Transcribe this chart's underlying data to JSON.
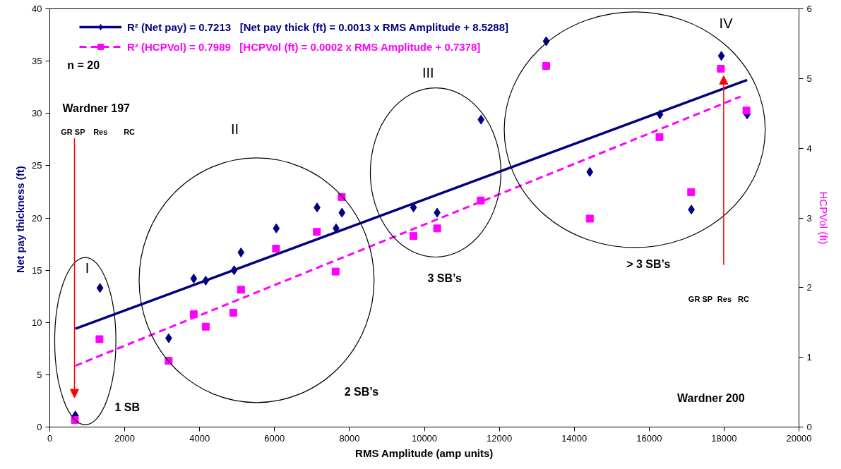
{
  "chart_data": {
    "type": "scatter",
    "xlabel": "RMS Amplitude (amp units)",
    "ylabel": "Net  pay thickness (ft)",
    "y2label": "HCPVol (ft)",
    "xlim": [
      0,
      20000
    ],
    "xticks": [
      0,
      2000,
      4000,
      6000,
      8000,
      10000,
      12000,
      14000,
      16000,
      18000,
      20000
    ],
    "ylim": [
      0,
      40
    ],
    "yticks": [
      0,
      5,
      10,
      15,
      20,
      25,
      30,
      35,
      40
    ],
    "y2lim": [
      0,
      6
    ],
    "y2ticks": [
      0,
      1,
      2,
      3,
      4,
      5,
      6
    ],
    "grid": false,
    "legend": "top left",
    "series": [
      {
        "name": "R² (Net pay) = 0.7213   [Net pay thick (ft) = 0.0013 x RMS Amplitude + 8.5288]",
        "color": "#000080",
        "marker": "diamond",
        "x": [
          682,
          1340,
          3174,
          3843,
          4163,
          4920,
          5104,
          6047,
          7136,
          7643,
          7800,
          9709,
          10341,
          11512,
          14416,
          13252,
          16288,
          17127,
          17928,
          18616
        ],
        "values": [
          1.1,
          13.3,
          8.5,
          14.2,
          14.0,
          15.0,
          16.7,
          19.0,
          21.0,
          19.0,
          20.5,
          21.0,
          20.5,
          29.4,
          24.4,
          36.9,
          29.9,
          20.8,
          35.5,
          29.9
        ]
      },
      {
        "type": "line",
        "color": "#000080",
        "line_style": "solid",
        "x": [
          682,
          18616
        ],
        "values": [
          9.4,
          33.2
        ]
      },
      {
        "name": "R² (HCPVol) = 0.7989   [HCPVol (ft) = 0.0002 x RMS Amplitude + 0.7378]",
        "color": "#ff00ff",
        "marker": "square",
        "axis": "y2",
        "x": [
          670,
          1327,
          3174,
          3843,
          4163,
          4900,
          5104,
          6040,
          7130,
          7630,
          7793,
          9709,
          10341,
          11505,
          14416,
          13252,
          16276,
          17121,
          17915,
          18597
        ],
        "values": [
          0.1,
          1.26,
          0.95,
          1.62,
          1.44,
          1.64,
          1.97,
          2.56,
          2.8,
          2.23,
          3.3,
          2.74,
          2.85,
          3.25,
          2.99,
          5.18,
          4.16,
          3.37,
          5.14,
          4.54
        ]
      },
      {
        "type": "line",
        "color": "#ff00ff",
        "line_style": "dashed",
        "axis": "y2",
        "x": [
          682,
          18440
        ],
        "values": [
          0.88,
          4.74
        ]
      }
    ],
    "annotations": [
      "n = 20",
      "I",
      "II",
      "III",
      "IV",
      "1 SB",
      "2 SB’s",
      "3 SB’s",
      "> 3 SB’s",
      "Wardner 197",
      "Wardner 200",
      "GR SP",
      "Res",
      "RC",
      "GR SP",
      "Res",
      "RC"
    ]
  }
}
